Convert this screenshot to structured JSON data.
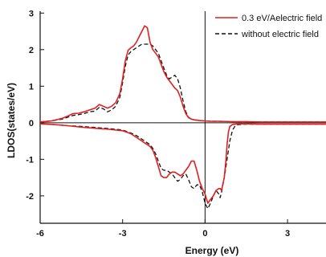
{
  "chart_data": {
    "type": "line",
    "xlabel": "Energy (eV)",
    "ylabel": "LDOS(states/eV)",
    "xlim": [
      -6,
      4.4
    ],
    "ylim": [
      -2.75,
      3.05
    ],
    "x_ticks": [
      "-6",
      "-3",
      "0",
      "3"
    ],
    "x_tick_values": [
      -6,
      -3,
      0,
      3
    ],
    "y_ticks": [
      "3",
      "2",
      "1",
      "0",
      "-1",
      "-2"
    ],
    "y_tick_values": [
      3,
      2,
      1,
      0,
      -1,
      -2
    ],
    "legend": {
      "position": "top-right",
      "entries": [
        "0.3 eV/Aelectric field",
        "without electric field"
      ]
    },
    "series": [
      {
        "name": "0.3 eV/Aelectric field",
        "color": "#e02020",
        "style": "solid",
        "upper": {
          "x": [
            -6,
            -5.6,
            -5.2,
            -5.0,
            -4.8,
            -4.6,
            -4.4,
            -4.2,
            -4.0,
            -3.85,
            -3.7,
            -3.55,
            -3.4,
            -3.25,
            -3.1,
            -3.0,
            -2.9,
            -2.8,
            -2.7,
            -2.6,
            -2.5,
            -2.4,
            -2.3,
            -2.2,
            -2.1,
            -2.0,
            -1.9,
            -1.8,
            -1.7,
            -1.6,
            -1.5,
            -1.4,
            -1.3,
            -1.2,
            -1.1,
            -1.0,
            -0.9,
            -0.8,
            -0.7,
            -0.6,
            -0.5,
            -0.4,
            -0.2,
            0,
            0.2,
            0.5,
            1.0,
            1.5,
            2.0,
            2.5,
            3.0,
            3.5,
            4.0,
            4.4
          ],
          "y": [
            0.02,
            0.05,
            0.12,
            0.18,
            0.25,
            0.26,
            0.3,
            0.35,
            0.4,
            0.5,
            0.45,
            0.4,
            0.45,
            0.55,
            0.8,
            1.2,
            1.7,
            1.98,
            2.05,
            2.1,
            2.2,
            2.35,
            2.5,
            2.65,
            2.6,
            2.2,
            2.0,
            1.9,
            1.8,
            1.6,
            1.4,
            1.25,
            1.15,
            1.05,
            0.95,
            0.88,
            0.7,
            0.45,
            0.25,
            0.14,
            0.1,
            0.08,
            0.06,
            0.05,
            0.04,
            0.04,
            0.03,
            0.03,
            0.02,
            0.02,
            0.02,
            0.02,
            0.02,
            0.02
          ]
        },
        "lower": {
          "x": [
            -6,
            -5.5,
            -5.0,
            -4.5,
            -4.0,
            -3.5,
            -3.0,
            -2.7,
            -2.5,
            -2.3,
            -2.2,
            -2.1,
            -2.0,
            -1.9,
            -1.8,
            -1.7,
            -1.6,
            -1.5,
            -1.4,
            -1.3,
            -1.2,
            -1.1,
            -1.0,
            -0.9,
            -0.8,
            -0.7,
            -0.6,
            -0.5,
            -0.4,
            -0.3,
            -0.2,
            -0.1,
            0,
            0.1,
            0.2,
            0.3,
            0.4,
            0.5,
            0.55,
            0.6,
            0.7,
            0.75,
            0.8,
            0.85,
            0.9,
            1.0,
            1.1,
            1.2,
            1.5,
            2.0,
            2.5,
            3.0,
            3.5,
            4.0,
            4.4
          ],
          "y": [
            -0.03,
            -0.05,
            -0.08,
            -0.12,
            -0.15,
            -0.18,
            -0.22,
            -0.3,
            -0.4,
            -0.5,
            -0.55,
            -0.6,
            -0.65,
            -0.75,
            -0.95,
            -1.2,
            -1.45,
            -1.5,
            -1.5,
            -1.4,
            -1.35,
            -1.35,
            -1.4,
            -1.45,
            -1.4,
            -1.3,
            -1.2,
            -1.05,
            -1.05,
            -1.3,
            -1.6,
            -1.8,
            -1.95,
            -2.2,
            -2.1,
            -2.0,
            -1.85,
            -1.8,
            -1.8,
            -1.85,
            -1.5,
            -1.1,
            -0.6,
            -0.25,
            -0.1,
            -0.05,
            -0.04,
            -0.03,
            -0.03,
            -0.04,
            -0.04,
            -0.04,
            -0.04,
            -0.04,
            -0.04
          ]
        }
      },
      {
        "name": "without electric field",
        "color": "#111111",
        "style": "dashed",
        "upper": {
          "x": [
            -6,
            -5.6,
            -5.2,
            -5.0,
            -4.8,
            -4.6,
            -4.4,
            -4.2,
            -4.0,
            -3.85,
            -3.7,
            -3.55,
            -3.4,
            -3.25,
            -3.1,
            -3.0,
            -2.9,
            -2.8,
            -2.7,
            -2.6,
            -2.5,
            -2.4,
            -2.3,
            -2.2,
            -2.1,
            -2.0,
            -1.9,
            -1.8,
            -1.7,
            -1.6,
            -1.5,
            -1.4,
            -1.3,
            -1.2,
            -1.1,
            -1.0,
            -0.9,
            -0.8,
            -0.7,
            -0.6,
            -0.5,
            -0.4,
            -0.2,
            0,
            0.2,
            0.5,
            1.0,
            1.5,
            2.0,
            2.5,
            3.0,
            3.5,
            4.0,
            4.4
          ],
          "y": [
            0.02,
            0.05,
            0.1,
            0.15,
            0.2,
            0.22,
            0.25,
            0.3,
            0.32,
            0.42,
            0.38,
            0.3,
            0.35,
            0.45,
            0.7,
            1.1,
            1.55,
            1.85,
            1.95,
            2.0,
            2.05,
            2.1,
            2.15,
            2.15,
            2.15,
            2.15,
            2.1,
            2.0,
            1.9,
            1.7,
            1.5,
            1.3,
            1.2,
            1.25,
            1.3,
            1.2,
            0.95,
            0.6,
            0.3,
            0.15,
            0.1,
            0.08,
            0.06,
            0.05,
            0.04,
            0.04,
            0.03,
            0.03,
            0.02,
            0.02,
            0.02,
            0.02,
            0.02,
            0.02
          ]
        },
        "lower": {
          "x": [
            -6,
            -5.5,
            -5.0,
            -4.5,
            -4.0,
            -3.5,
            -3.0,
            -2.7,
            -2.5,
            -2.3,
            -2.2,
            -2.1,
            -2.0,
            -1.9,
            -1.8,
            -1.7,
            -1.6,
            -1.5,
            -1.4,
            -1.3,
            -1.2,
            -1.1,
            -1.0,
            -0.9,
            -0.8,
            -0.7,
            -0.6,
            -0.5,
            -0.4,
            -0.3,
            -0.2,
            -0.1,
            0,
            0.1,
            0.2,
            0.3,
            0.4,
            0.5,
            0.55,
            0.6,
            0.7,
            0.8,
            0.9,
            1.0,
            1.1,
            1.2,
            1.5,
            2.0,
            2.5,
            3.0,
            3.5,
            4.0,
            4.4
          ],
          "y": [
            -0.03,
            -0.05,
            -0.08,
            -0.1,
            -0.13,
            -0.16,
            -0.2,
            -0.28,
            -0.35,
            -0.45,
            -0.5,
            -0.55,
            -0.6,
            -0.7,
            -0.85,
            -1.05,
            -1.25,
            -1.3,
            -1.3,
            -1.35,
            -1.4,
            -1.5,
            -1.6,
            -1.55,
            -1.45,
            -1.4,
            -1.55,
            -1.75,
            -1.8,
            -1.7,
            -1.7,
            -1.9,
            -2.2,
            -2.35,
            -2.2,
            -2.0,
            -1.85,
            -1.95,
            -2.05,
            -1.9,
            -1.5,
            -1.0,
            -0.5,
            -0.2,
            -0.08,
            -0.05,
            -0.04,
            -0.04,
            -0.04,
            -0.04,
            -0.04,
            -0.04,
            -0.04
          ]
        }
      }
    ]
  }
}
